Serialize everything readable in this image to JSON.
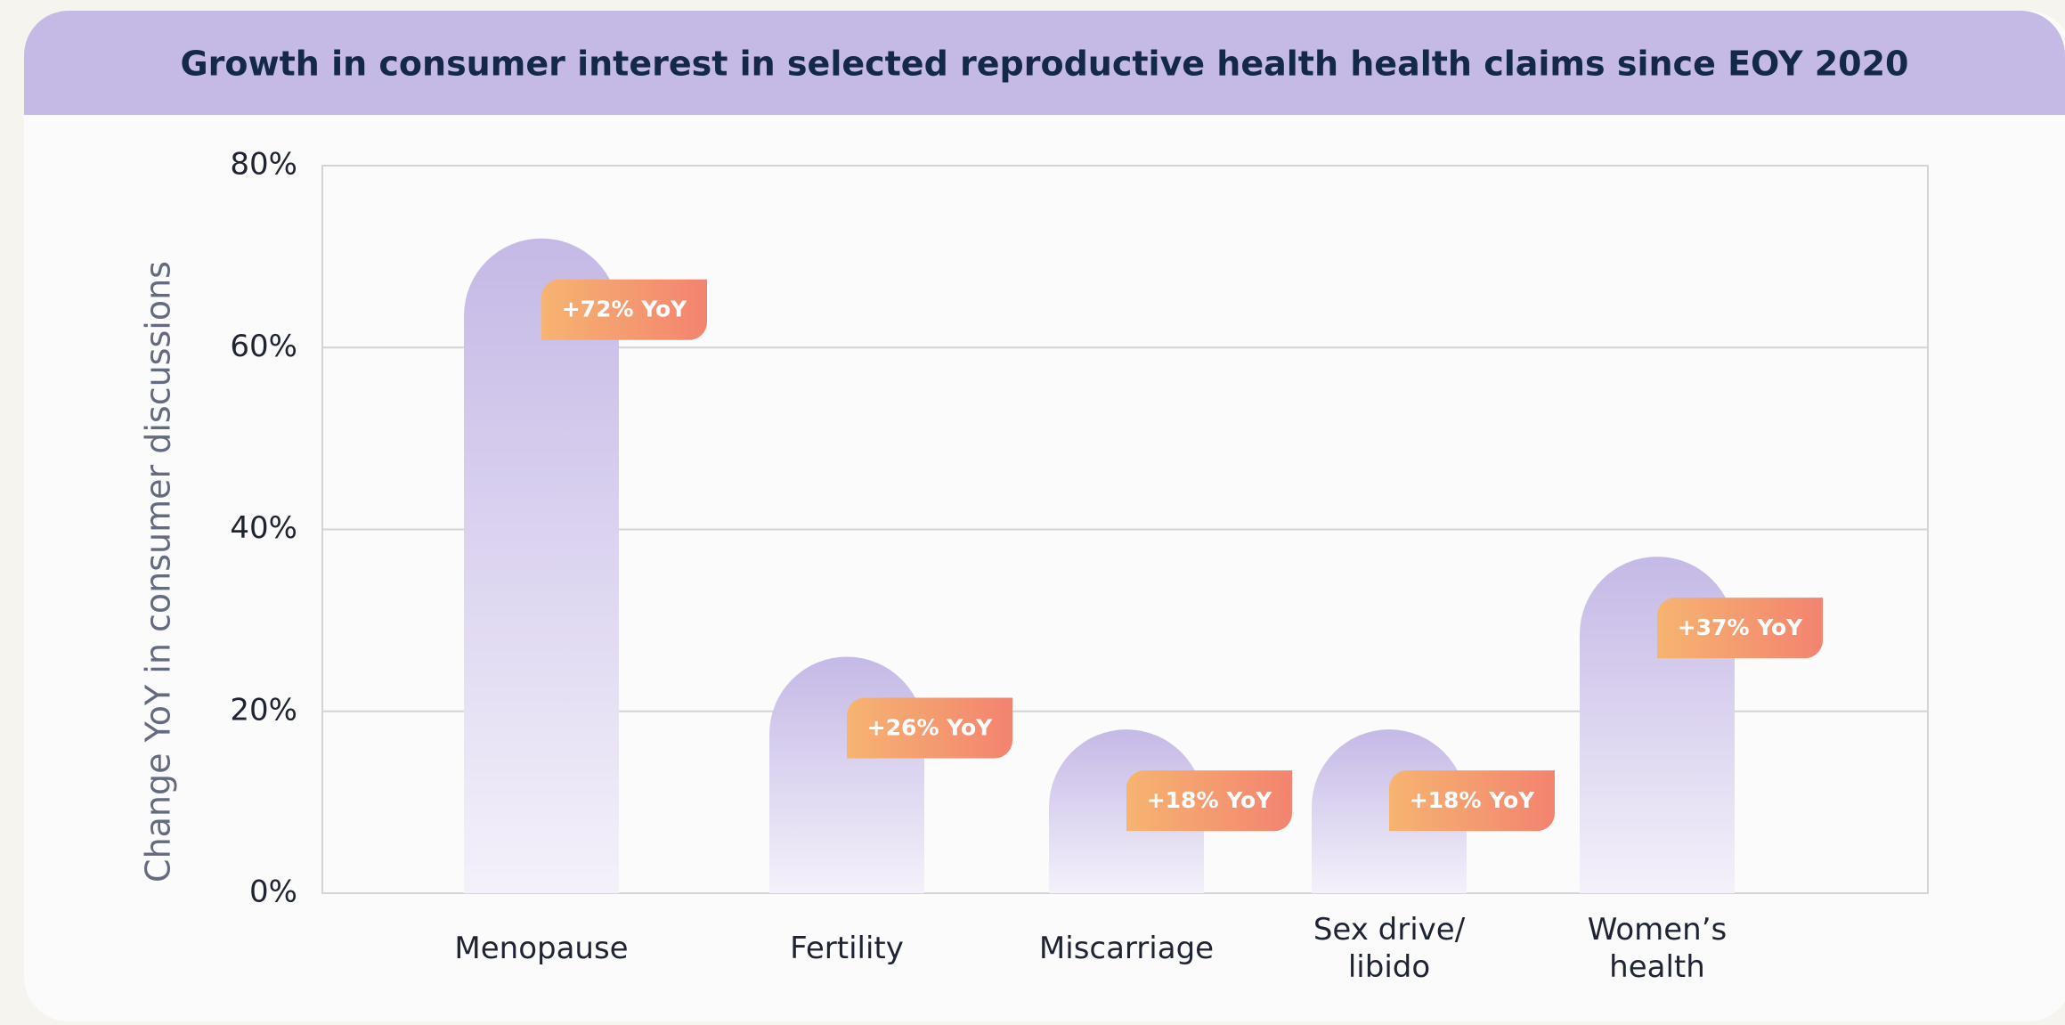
{
  "chart_data": {
    "type": "bar",
    "title": "Growth in consumer interest in selected reproductive health health claims since EOY 2020",
    "y_label": "Change YoY in consumer discussions",
    "categories": [
      "Menopause",
      "Fertility",
      "Miscarriage",
      "Sex drive/\nlibido",
      "Women’s\nhealth"
    ],
    "values": [
      72,
      26,
      18,
      18,
      37
    ],
    "value_labels": [
      "+72% YoY",
      "+26% YoY",
      "+18% YoY",
      "+18% YoY",
      "+37% YoY"
    ],
    "color": "#c5b9e6",
    "label_color": "#f3906f",
    "ylim": [
      0,
      80
    ],
    "yticks": [
      {
        "value": 0,
        "label": "0%"
      },
      {
        "value": 20,
        "label": "20%"
      },
      {
        "value": 40,
        "label": "40%"
      },
      {
        "value": 60,
        "label": "60%"
      },
      {
        "value": 80,
        "label": "80%"
      }
    ],
    "grid": true
  }
}
